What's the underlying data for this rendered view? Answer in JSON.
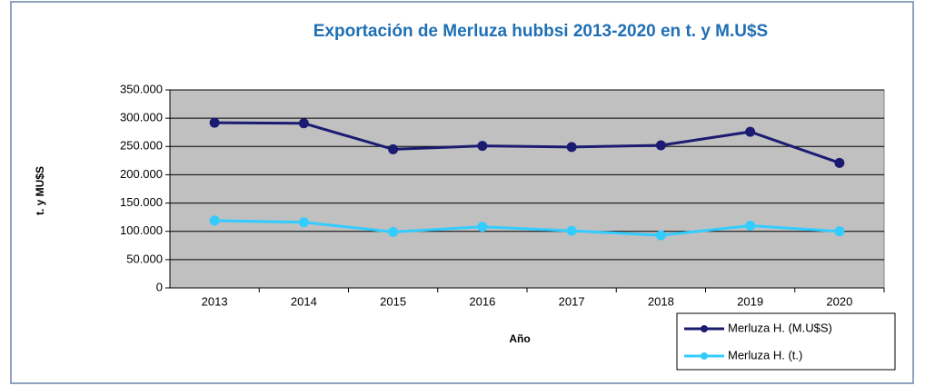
{
  "chart_data": {
    "type": "line",
    "title": "Exportación de Merluza hubbsi  2013-2020 en t. y M.U$S",
    "y_label": "t. y MU$S",
    "x_label": "Año",
    "categories": [
      "2013",
      "2014",
      "2015",
      "2016",
      "2017",
      "2018",
      "2019",
      "2020"
    ],
    "series": [
      {
        "name": "Merluza H. (M.U$S)",
        "color": "#1b1b72",
        "values": [
          292000,
          291000,
          245000,
          251000,
          249000,
          252000,
          276000,
          221000
        ]
      },
      {
        "name": "Merluza H. (t.)",
        "color": "#33ccff",
        "values": [
          119000,
          116000,
          99000,
          108000,
          101000,
          93000,
          110000,
          100000
        ]
      }
    ],
    "ylim": [
      0,
      350000
    ],
    "yticks": [
      0,
      {
        "value": 50000,
        "label": "50.000"
      },
      {
        "value": 100000,
        "label": "100.000"
      },
      {
        "value": 150000,
        "label": "150.000"
      },
      {
        "value": 200000,
        "label": "200.000"
      },
      {
        "value": 250000,
        "label": "250.000"
      },
      {
        "value": 300000,
        "label": "300.000"
      },
      {
        "value": 350000,
        "label": "350.000"
      }
    ],
    "grid": true,
    "legend": "bottom-right",
    "plot_background": "#c0c0c0"
  }
}
